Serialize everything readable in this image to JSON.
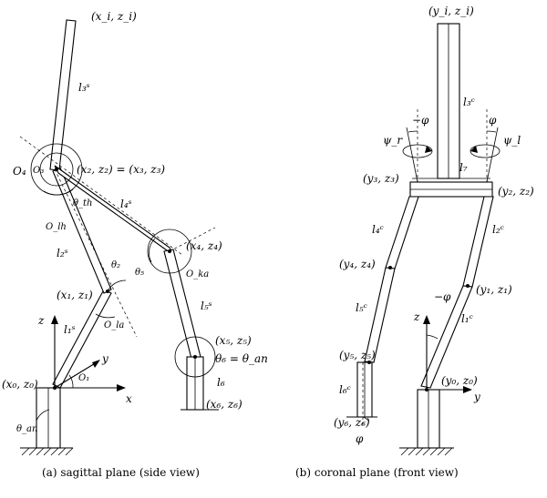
{
  "captions": {
    "sagittal": "(a) sagittal plane (side view)",
    "coronal": "(b) coronal plane (front view)"
  },
  "sagittal_labels": {
    "p_i": "(x_i, z_i)",
    "l3": "l₃ˢ",
    "o4": "O₄",
    "o3": "O₃",
    "p2": "(x₂, z₂) = (x₃, z₃)",
    "theta_th": "θ_th",
    "l4": "l₄ˢ",
    "o_lh": "O_lh",
    "l2": "l₂ˢ",
    "p4": "(x₄, z₄)",
    "theta2": "θ₂",
    "theta5": "θ₅",
    "o_ka": "O_ka",
    "p1": "(x₁, z₁)",
    "o_la": "O_la",
    "l5": "l₅ˢ",
    "z_axis": "z",
    "l1": "l₁ˢ",
    "y_axis": "y",
    "p5": "(x₅, z₅)",
    "theta6": "θ₆ = θ_an",
    "p0": "(x₀, z₀)",
    "o1": "O₁",
    "l6": "l₆",
    "x_axis": "x",
    "p6": "(x₆, z₆)",
    "theta_an": "θ_an"
  },
  "coronal_labels": {
    "p_i": "(y_i, z_i)",
    "l3": "l₃ᶜ",
    "neg_phi": "−φ",
    "phi": "φ",
    "psi_r": "ψ_r",
    "psi_l": "ψ_l",
    "l7": "l₇",
    "p3": "(y₃, z₃)",
    "p2": "(y₂, z₂)",
    "l4": "l₄ᶜ",
    "l2": "l₂ᶜ",
    "p4": "(y₄, z₄)",
    "p1": "(y₁, z₁)",
    "neg_phi2": "−φ",
    "l5": "l₅ᶜ",
    "z_axis": "z",
    "l1": "l₁ᶜ",
    "p5": "(y₅, z₅)",
    "p0": "(y₀, z₀)",
    "y_axis": "y",
    "l6": "l₆ᶜ",
    "p6": "(y₆, z₆)",
    "phi_bottom": "φ"
  }
}
